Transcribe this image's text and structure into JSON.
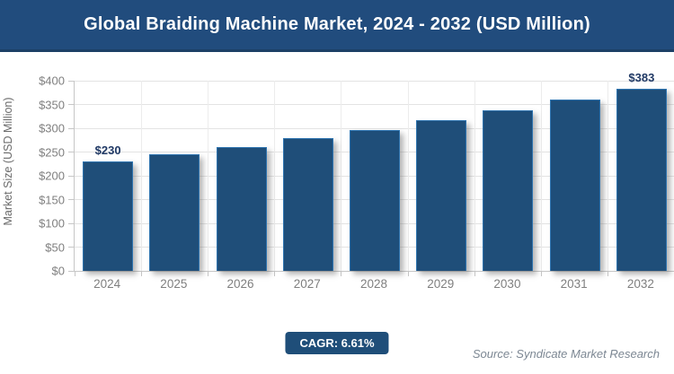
{
  "header": {
    "title": "Global Braiding Machine Market, 2024 - 2032 (USD Million)"
  },
  "chart_data": {
    "type": "bar",
    "title": "Global Braiding Machine Market, 2024 - 2032 (USD Million)",
    "categories": [
      "2024",
      "2025",
      "2026",
      "2027",
      "2028",
      "2029",
      "2030",
      "2031",
      "2032"
    ],
    "values": [
      230,
      245,
      261,
      279,
      297,
      317,
      338,
      360,
      383
    ],
    "data_labels": [
      "$230",
      "",
      "",
      "",
      "",
      "",
      "",
      "",
      "$383"
    ],
    "xlabel": "",
    "ylabel": "Market Size (USD Million)",
    "ylim": [
      0,
      400
    ],
    "ytick_step": 50,
    "ytick_labels": [
      "$0",
      "$50",
      "$100",
      "$150",
      "$200",
      "$250",
      "$300",
      "$350",
      "$400"
    ],
    "grid": true,
    "legend": "none"
  },
  "footer": {
    "cagr_label": "CAGR: 6.61%",
    "source": "Source: Syndicate Market Research"
  },
  "colors": {
    "header_bg": "#214C7D",
    "header_edge": "#1C4066",
    "bar_color": "#1F4E79",
    "bar_border": "#2E74B0",
    "value_label_color": "#1F3864",
    "tick_color": "#7F7F7F",
    "grid_color": "#E3E3E3",
    "vgrid_color": "#ECECEC",
    "axis_color": "#C6C6C6",
    "cagr_bg": "#1F4E79",
    "source_color": "#7C8793"
  }
}
